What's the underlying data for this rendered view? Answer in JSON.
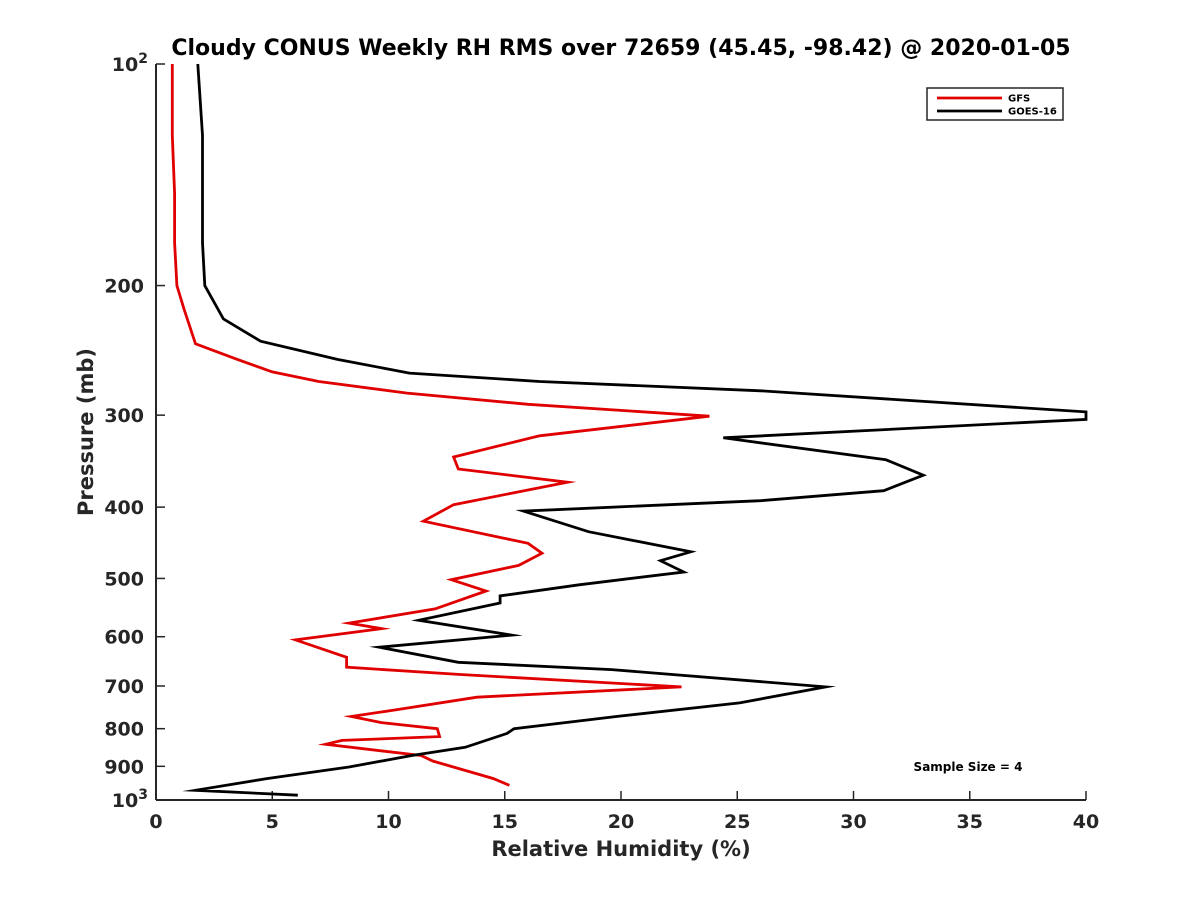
{
  "chart_data": {
    "type": "line",
    "title": "Cloudy CONUS Weekly RH RMS over 72659 (45.45, -98.42) @ 2020-01-05",
    "xlabel": "Relative Humidity (%)",
    "ylabel": "Pressure (mb)",
    "xlim": [
      0,
      40
    ],
    "ylim": [
      100,
      1000
    ],
    "y_scale": "log",
    "y_reversed": true,
    "xticks": [
      0,
      5,
      10,
      15,
      20,
      25,
      30,
      35,
      40
    ],
    "yticks": [
      {
        "value": 100,
        "base": "10",
        "exp": "2"
      },
      {
        "value": 200,
        "label": "200"
      },
      {
        "value": 300,
        "label": "300"
      },
      {
        "value": 400,
        "label": "400"
      },
      {
        "value": 500,
        "label": "500"
      },
      {
        "value": 600,
        "label": "600"
      },
      {
        "value": 700,
        "label": "700"
      },
      {
        "value": 800,
        "label": "800"
      },
      {
        "value": 900,
        "label": "900"
      },
      {
        "value": 1000,
        "base": "10",
        "exp": "3"
      }
    ],
    "grid": false,
    "legend_position": "top-right",
    "annotation": "Sample Size = 4",
    "series": [
      {
        "name": "GFS",
        "color": "#e00000",
        "points": [
          [
            0.7,
            100
          ],
          [
            0.7,
            125
          ],
          [
            0.8,
            150
          ],
          [
            0.8,
            175
          ],
          [
            0.9,
            200
          ],
          [
            1.2,
            215
          ],
          [
            1.7,
            240
          ],
          [
            3.5,
            252
          ],
          [
            5.0,
            262
          ],
          [
            7.0,
            270
          ],
          [
            10.8,
            280
          ],
          [
            16.0,
            290
          ],
          [
            23.8,
            301
          ],
          [
            16.5,
            320
          ],
          [
            12.8,
            342
          ],
          [
            13.0,
            355
          ],
          [
            17.7,
            370
          ],
          [
            12.8,
            397
          ],
          [
            11.5,
            418
          ],
          [
            16.0,
            448
          ],
          [
            16.6,
            462
          ],
          [
            15.6,
            480
          ],
          [
            12.7,
            502
          ],
          [
            14.2,
            520
          ],
          [
            12.0,
            550
          ],
          [
            8.3,
            575
          ],
          [
            9.7,
            585
          ],
          [
            6.0,
            606
          ],
          [
            8.2,
            640
          ],
          [
            8.2,
            660
          ],
          [
            13.0,
            675
          ],
          [
            22.6,
            702
          ],
          [
            13.8,
            725
          ],
          [
            10.2,
            755
          ],
          [
            8.4,
            770
          ],
          [
            9.7,
            785
          ],
          [
            12.1,
            800
          ],
          [
            12.2,
            820
          ],
          [
            8.0,
            830
          ],
          [
            7.3,
            840
          ],
          [
            11.4,
            870
          ],
          [
            11.9,
            885
          ],
          [
            14.5,
            935
          ],
          [
            15.2,
            955
          ]
        ]
      },
      {
        "name": "GOES-16",
        "color": "#000000",
        "points": [
          [
            1.8,
            100
          ],
          [
            2.0,
            125
          ],
          [
            2.0,
            150
          ],
          [
            2.0,
            175
          ],
          [
            2.1,
            200
          ],
          [
            2.9,
            222
          ],
          [
            4.5,
            238
          ],
          [
            7.8,
            252
          ],
          [
            10.9,
            263
          ],
          [
            16.5,
            270
          ],
          [
            26.0,
            278
          ],
          [
            40.0,
            297
          ],
          [
            40.0,
            304
          ],
          [
            24.4,
            322
          ],
          [
            31.4,
            345
          ],
          [
            33.0,
            362
          ],
          [
            31.3,
            380
          ],
          [
            26.0,
            392
          ],
          [
            15.8,
            405
          ],
          [
            18.6,
            432
          ],
          [
            23.0,
            460
          ],
          [
            21.7,
            473
          ],
          [
            22.7,
            490
          ],
          [
            18.2,
            510
          ],
          [
            14.8,
            528
          ],
          [
            14.8,
            540
          ],
          [
            11.3,
            570
          ],
          [
            15.3,
            597
          ],
          [
            9.6,
            620
          ],
          [
            13.0,
            650
          ],
          [
            19.6,
            665
          ],
          [
            28.8,
            702
          ],
          [
            25.1,
            738
          ],
          [
            19.8,
            770
          ],
          [
            15.4,
            800
          ],
          [
            15.1,
            812
          ],
          [
            13.3,
            848
          ],
          [
            11.0,
            870
          ],
          [
            8.3,
            902
          ],
          [
            4.8,
            935
          ],
          [
            1.7,
            970
          ],
          [
            6.1,
            985
          ]
        ]
      }
    ]
  }
}
